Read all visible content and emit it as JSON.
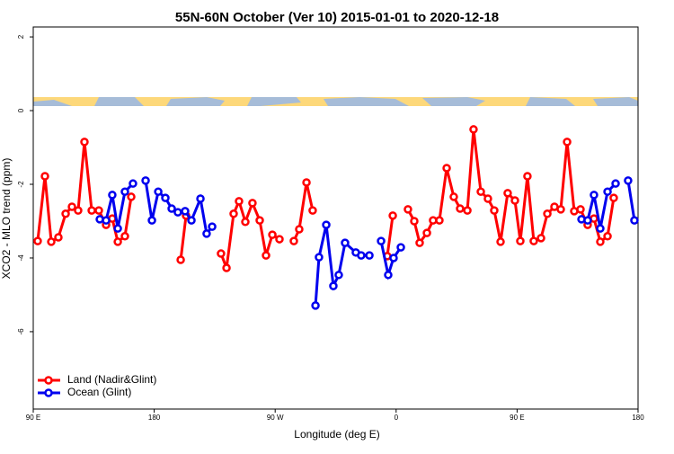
{
  "chart_data": {
    "type": "line",
    "title": "55N-60N October (Ver 10)   2015-01-01 to 2020-12-18",
    "x_label": "Longitude (deg E)",
    "y_label": "XCO2 - MLO trend (ppm)",
    "xlim": [
      90,
      540
    ],
    "ylim": [
      -8.1,
      2.27
    ],
    "xticks": [
      {
        "value": 90,
        "label": "90 E"
      },
      {
        "value": 180,
        "label": "180"
      },
      {
        "value": 270,
        "label": "90 W"
      },
      {
        "value": 360,
        "label": "0"
      },
      {
        "value": 450,
        "label": "90 E"
      },
      {
        "value": 540,
        "label": "180"
      }
    ],
    "yticks": [
      -6,
      -4,
      -2,
      0,
      2
    ],
    "legend": "bottomleft",
    "series": [
      {
        "name": "Land (Nadir&Glint)",
        "color": "#ff0000",
        "x": [
          93.3,
          98.7,
          103.4,
          108.7,
          114.1,
          118.8,
          123.4,
          128.1,
          133.5,
          138.8,
          144.2,
          148.8,
          152.9,
          158.2,
          162.9,
          null,
          199.7,
          203.7,
          null,
          229.7,
          233.8,
          239.1,
          243.1,
          247.8,
          253.1,
          258.5,
          263.2,
          267.9,
          273.2,
          null,
          283.9,
          287.9,
          293.3,
          297.9,
          null,
          353.4,
          357.5,
          null,
          368.8,
          373.5,
          377.5,
          382.9,
          387.5,
          392.2,
          397.6,
          402.9,
          407.6,
          413.0,
          417.6,
          423.0,
          428.3,
          433.0,
          437.7,
          443.0,
          448.4,
          452.4,
          457.7,
          462.4,
          467.8,
          472.5,
          477.8,
          482.5,
          487.2,
          492.5,
          497.2,
          502.5,
          507.2,
          511.9,
          517.3,
          521.9
        ],
        "values": [
          -3.54,
          -1.78,
          -3.56,
          -3.44,
          -2.8,
          -2.61,
          -2.71,
          -0.85,
          -2.71,
          -2.71,
          -3.1,
          -2.93,
          -3.56,
          -3.41,
          -2.34,
          null,
          -4.05,
          -2.85,
          null,
          -3.88,
          -4.27,
          -2.8,
          -2.46,
          -3.02,
          -2.51,
          -2.98,
          -3.93,
          -3.37,
          -3.49,
          null,
          -3.54,
          -3.22,
          -1.95,
          -2.71,
          null,
          -3.95,
          -2.85,
          null,
          -2.68,
          -3.0,
          -3.59,
          -3.32,
          -2.98,
          -2.98,
          -1.56,
          -2.34,
          -2.66,
          -2.71,
          -0.51,
          -2.2,
          -2.39,
          -2.71,
          -3.56,
          -2.24,
          -2.44,
          -3.54,
          -1.78,
          -3.54,
          -3.46,
          -2.8,
          -2.61,
          -2.68,
          -0.85,
          -2.73,
          -2.68,
          -3.1,
          -2.93,
          -3.56,
          -3.41,
          -2.37
        ]
      },
      {
        "name": "Ocean (Glint)",
        "color": "#0000ee",
        "x": [
          139.5,
          144.2,
          148.8,
          152.9,
          158.2,
          164.2,
          null,
          173.6,
          178.3,
          183.0,
          188.3,
          193.0,
          197.6,
          203.0,
          207.7,
          214.4,
          219.0,
          223.1,
          null,
          300.0,
          302.6,
          308.0,
          313.3,
          317.3,
          322.0,
          330.0,
          334.0,
          340.1,
          null,
          348.8,
          354.1,
          358.1,
          363.5,
          null,
          497.9,
          502.5,
          507.2,
          511.9,
          517.3,
          523.3,
          null,
          532.6,
          537.3
        ],
        "values": [
          -2.95,
          -2.98,
          -2.29,
          -3.2,
          -2.2,
          -1.98,
          null,
          -1.9,
          -2.98,
          -2.2,
          -2.37,
          -2.66,
          -2.76,
          -2.73,
          -2.98,
          -2.39,
          -3.34,
          -3.15,
          null,
          -5.29,
          -3.98,
          -3.1,
          -4.76,
          -4.46,
          -3.59,
          -3.85,
          -3.93,
          -3.93,
          null,
          -3.54,
          -4.46,
          -4.0,
          -3.71,
          null,
          -2.95,
          -2.98,
          -2.29,
          -3.2,
          -2.2,
          -1.98,
          null,
          -1.9,
          -2.98
        ]
      }
    ]
  }
}
